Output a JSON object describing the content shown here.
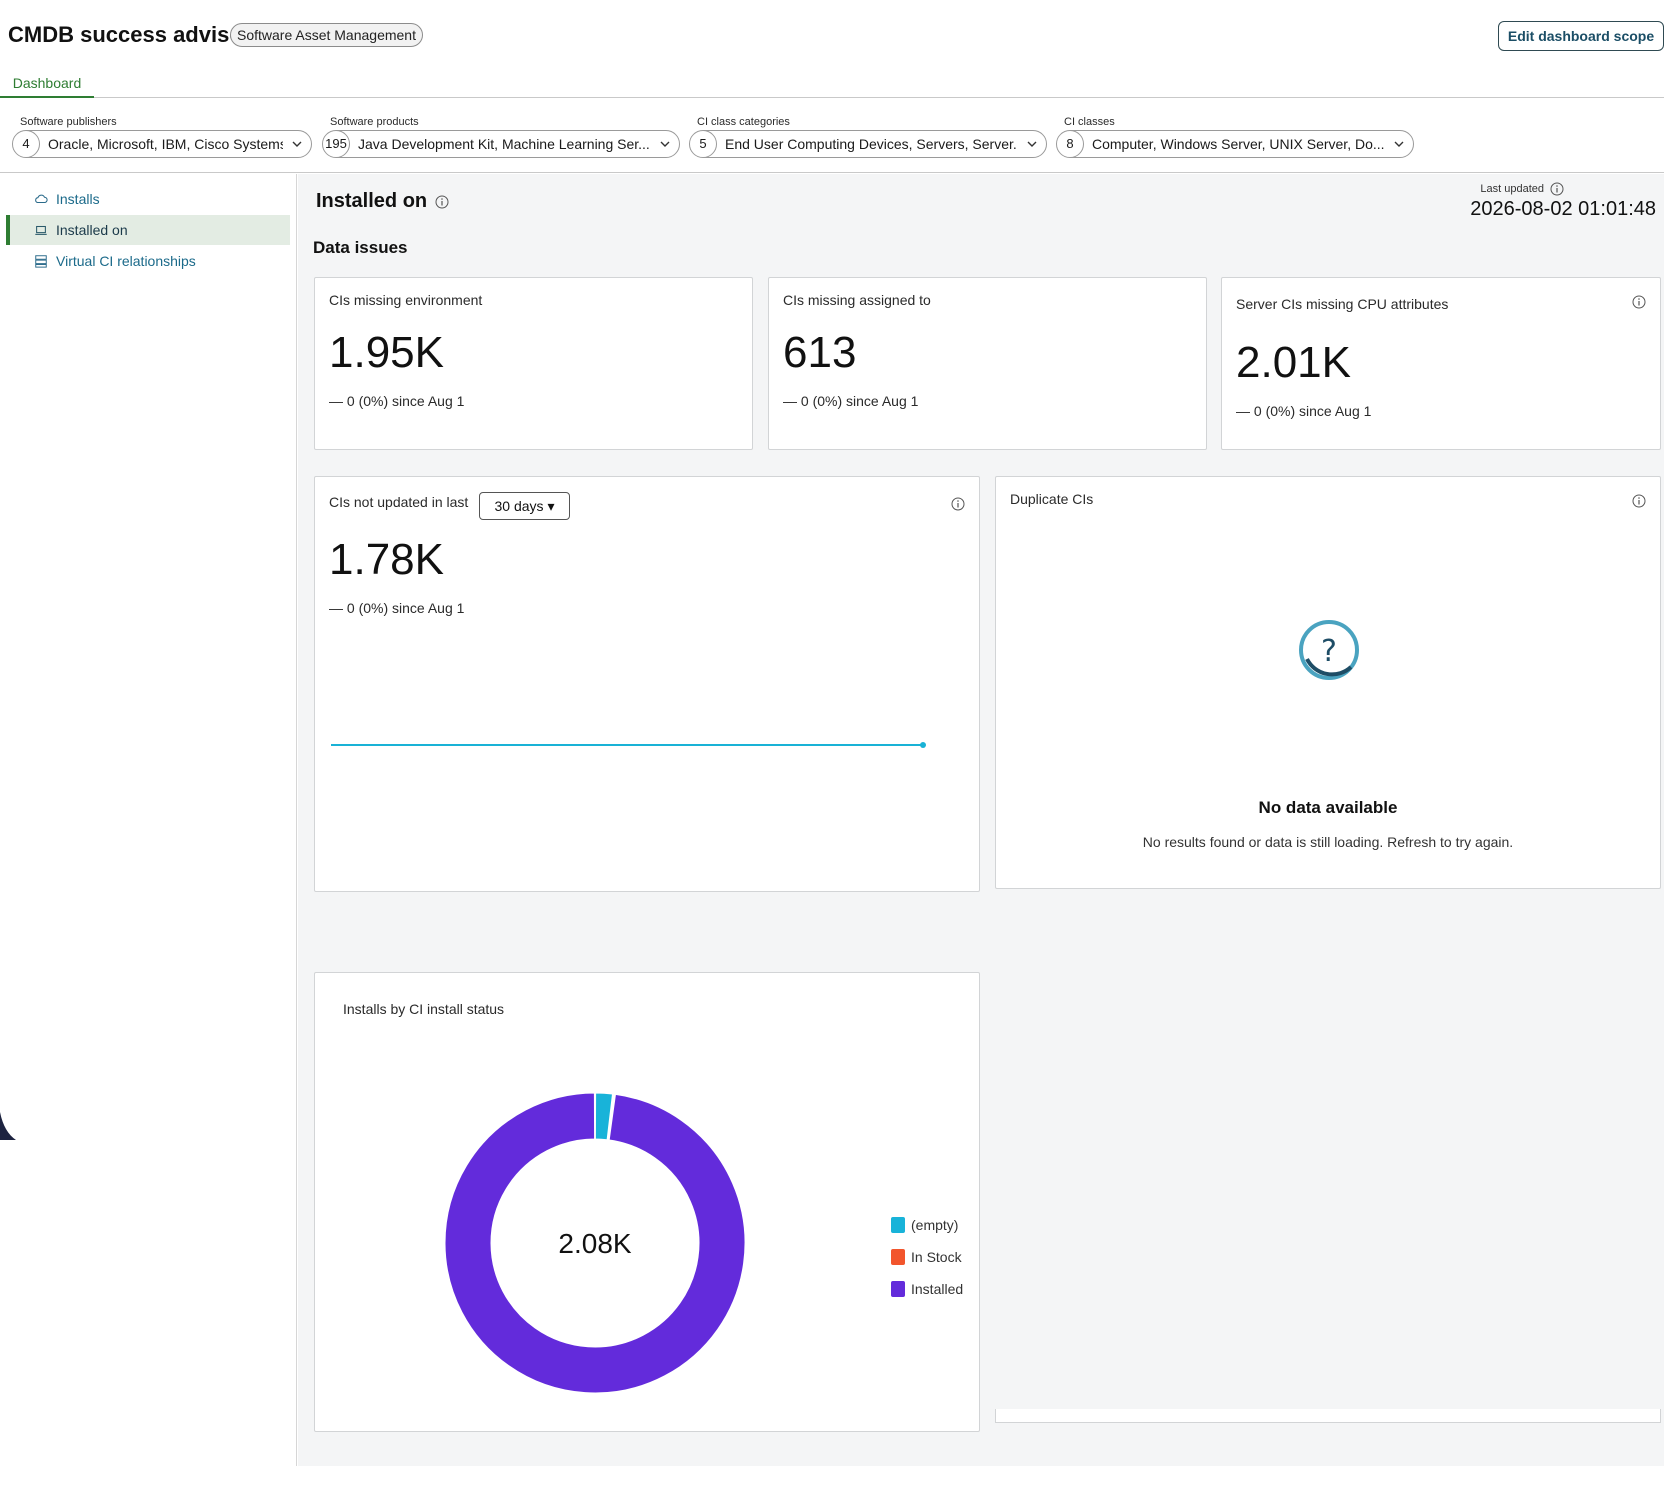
{
  "header": {
    "title": "CMDB success advisor",
    "badge": "Software Asset Management",
    "edit_scope_label": "Edit dashboard scope"
  },
  "tabs": [
    {
      "label": "Dashboard",
      "active": true
    }
  ],
  "filters": [
    {
      "label": "Software publishers",
      "count": "4",
      "value": "Oracle, Microsoft, IBM, Cisco Systems"
    },
    {
      "label": "Software products",
      "count": "195",
      "value": "Java Development Kit, Machine Learning Ser..."
    },
    {
      "label": "CI class categories",
      "count": "5",
      "value": "End User Computing Devices, Servers, Server..."
    },
    {
      "label": "CI classes",
      "count": "8",
      "value": "Computer, Windows Server, UNIX Server, Do..."
    }
  ],
  "sidebar": {
    "items": [
      {
        "label": "Installs",
        "icon": "cloud-icon",
        "active": false
      },
      {
        "label": "Installed on",
        "icon": "laptop-icon",
        "active": true
      },
      {
        "label": "Virtual CI relationships",
        "icon": "server-stack-icon",
        "active": false
      }
    ]
  },
  "main": {
    "title": "Installed on",
    "last_updated_label": "Last updated",
    "last_updated_value": "2026-08-02 01:01:48",
    "section_title": "Data issues",
    "cards": {
      "missing_env": {
        "title": "CIs missing environment",
        "value": "1.95K",
        "delta": "— 0 (0%) since Aug 1"
      },
      "missing_assigned": {
        "title": "CIs missing assigned to",
        "value": "613",
        "delta": "— 0 (0%) since Aug 1"
      },
      "missing_cpu": {
        "title": "Server CIs missing CPU attributes",
        "value": "2.01K",
        "delta": "— 0 (0%) since Aug 1"
      },
      "not_updated": {
        "title": "CIs not updated in last",
        "dropdown": "30 days ▾",
        "value": "1.78K",
        "delta": "— 0 (0%) since Aug 1"
      },
      "duplicates": {
        "title": "Duplicate CIs",
        "nodata_title": "No data available",
        "nodata_text": "No results found or data is still loading. Refresh to try again."
      },
      "install_status": {
        "title": "Installs by CI install status",
        "center_label": "2.08K"
      }
    }
  },
  "colors": {
    "accent_green": "#2e7d32",
    "link_blue": "#1b6a8a",
    "line_cyan": "#19b2d6",
    "empty": "#18b3d9",
    "in_stock": "#f2552c",
    "installed": "#632bdb"
  },
  "chart_data": [
    {
      "type": "line",
      "title": "",
      "series": [
        {
          "values": [
            1780,
            1780
          ]
        }
      ]
    },
    {
      "type": "pie",
      "title": "Installs by CI install status",
      "center_label": "2.08K",
      "slices": [
        {
          "label": "(empty)",
          "value": 40,
          "color": "#18b3d9"
        },
        {
          "label": "In Stock",
          "value": 4,
          "color": "#f2552c"
        },
        {
          "label": "Installed",
          "value": 2036,
          "color": "#632bdb"
        }
      ]
    }
  ]
}
